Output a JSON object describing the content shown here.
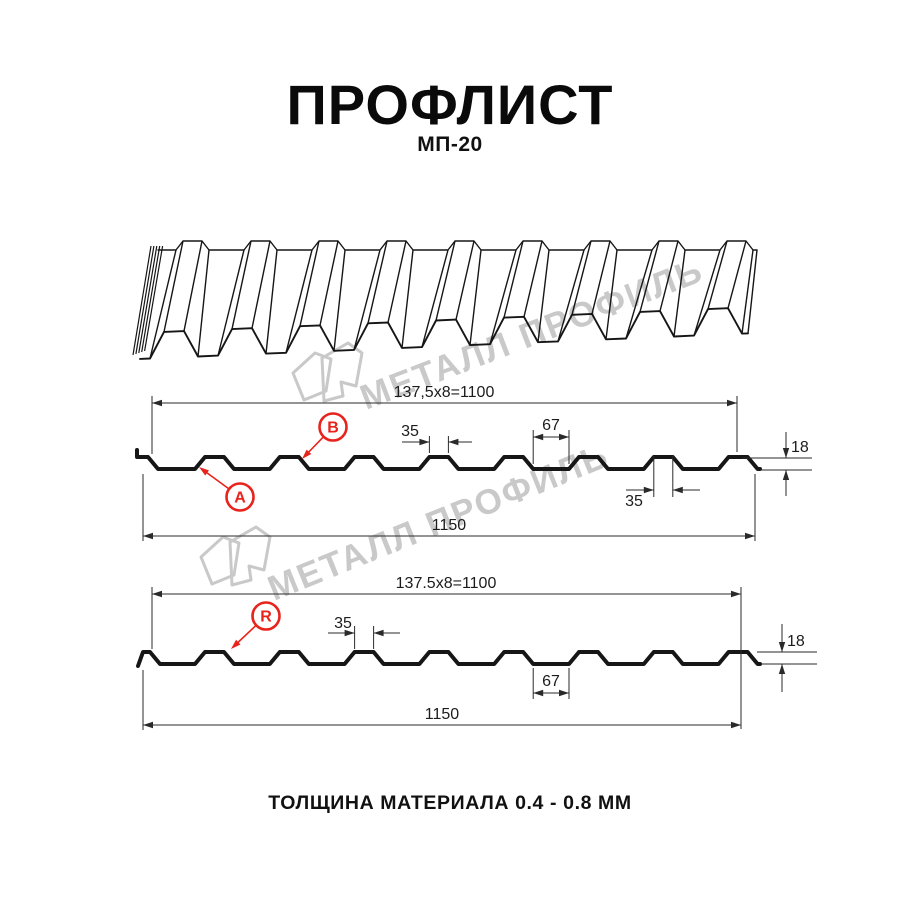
{
  "header": {
    "title": "ПРОФЛИСТ",
    "subtitle": "МП-20"
  },
  "footer": {
    "caption": "ТОЛЩИНА МАТЕРИАЛА 0.4 - 0.8 ММ"
  },
  "watermark": {
    "brand": "МЕТАЛЛ ПРОФИЛЬ",
    "color": "#c9c9c9"
  },
  "colors": {
    "line": "#161616",
    "thin": "#2a2a2a",
    "red": "#e8231c",
    "text": "#1c1c1c",
    "watermark": "#c9c9c9"
  },
  "sections": [
    {
      "name": "cross-section-side-A",
      "module_width_label": "137,5x8=1100",
      "rib_top_width_label": "35",
      "valley_width_label": "67",
      "height_label": "18",
      "rib_bottom_width_label": "35",
      "overall_width_label": "1150",
      "callouts": [
        {
          "label": "A"
        },
        {
          "label": "B"
        }
      ]
    },
    {
      "name": "cross-section-side-R",
      "module_width_label": "137.5x8=1100",
      "rib_top_width_label": "35",
      "valley_width_label": "67",
      "height_label": "18",
      "overall_width_label": "1150",
      "callouts": [
        {
          "label": "R"
        }
      ]
    }
  ]
}
